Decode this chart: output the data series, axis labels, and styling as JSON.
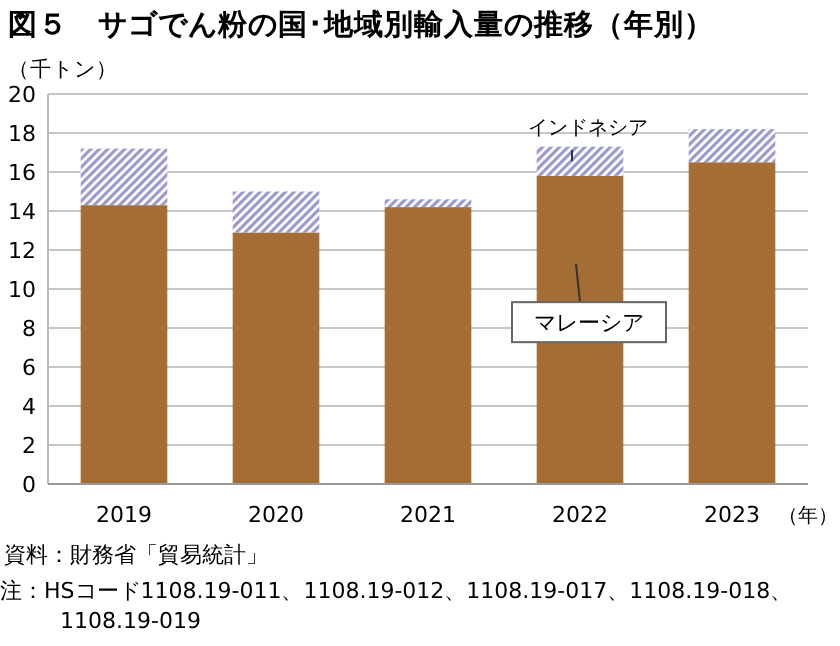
{
  "chart_data": {
    "type": "bar",
    "stacked": true,
    "title": "図５　サゴでん粉の国･地域別輸入量の推移（年別）",
    "ylabel": "（千トン）",
    "xlabel": "（年）",
    "categories": [
      "2019",
      "2020",
      "2021",
      "2022",
      "2023"
    ],
    "series": [
      {
        "name": "マレーシア",
        "color": "#a36d35",
        "values": [
          14.3,
          12.9,
          14.2,
          15.8,
          16.5
        ]
      },
      {
        "name": "インドネシア",
        "color": "#9a9ad0",
        "values": [
          2.9,
          2.1,
          0.4,
          1.5,
          1.7
        ]
      }
    ],
    "ylim": [
      0,
      20
    ],
    "yticks": [
      0,
      2,
      4,
      6,
      8,
      10,
      12,
      14,
      16,
      18,
      20
    ],
    "grid": "y",
    "legend": false,
    "annotations": [
      "資料：財務省「貿易統計」",
      "注：HSコード1108.19-011、1108.19-012、1108.19-017、1108.19-018、1108.19-019"
    ]
  }
}
